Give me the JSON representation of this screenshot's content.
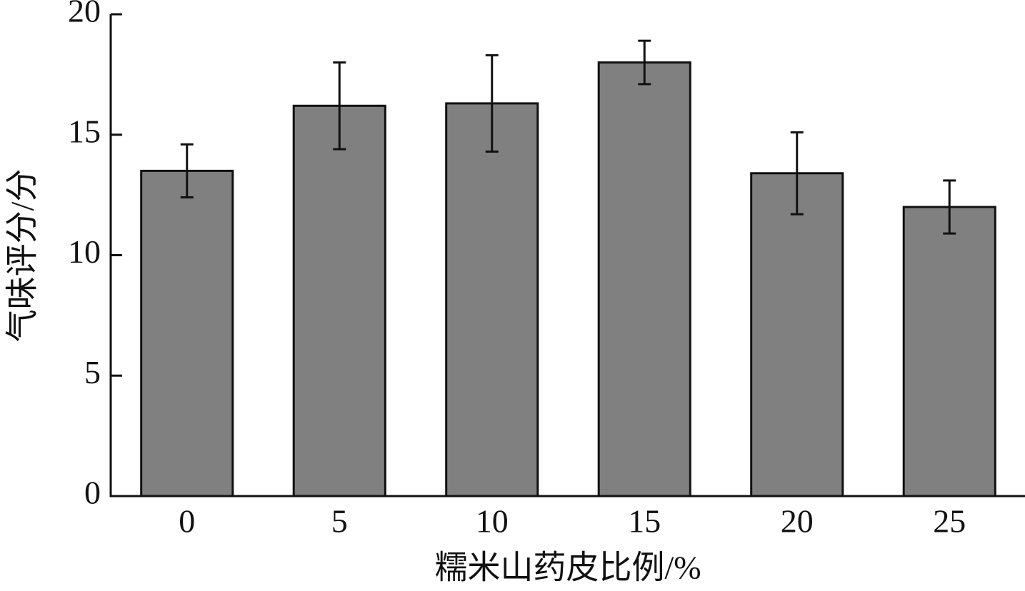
{
  "chart_data": {
    "type": "bar",
    "x_label": "糯米山药皮比例/%",
    "y_label": "气味评分/分",
    "categories": [
      "0",
      "5",
      "10",
      "15",
      "20",
      "25"
    ],
    "values": [
      13.5,
      16.2,
      16.3,
      18.0,
      13.4,
      12.0
    ],
    "errors": [
      1.1,
      1.8,
      2.0,
      0.9,
      1.7,
      1.1
    ],
    "color": "#808080",
    "ylim": [
      0,
      20
    ],
    "yticks": [
      0,
      5,
      10,
      15,
      20
    ]
  }
}
